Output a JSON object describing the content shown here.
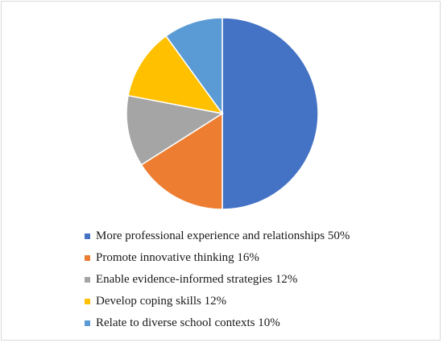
{
  "chart_data": {
    "type": "pie",
    "categories": [
      "More professional experience and relationships 50%",
      "Promote innovative thinking 16%",
      "Enable evidence-informed strategies 12%",
      "Develop coping skills 12%",
      "Relate to diverse school contexts 10%"
    ],
    "values": [
      50,
      16,
      12,
      12,
      10
    ],
    "colors": [
      "#4472C4",
      "#ED7D31",
      "#A5A5A5",
      "#FFC000",
      "#5B9BD5"
    ],
    "title": "",
    "legend_position": "bottom",
    "start_angle": "12 o'clock",
    "direction": "clockwise"
  }
}
